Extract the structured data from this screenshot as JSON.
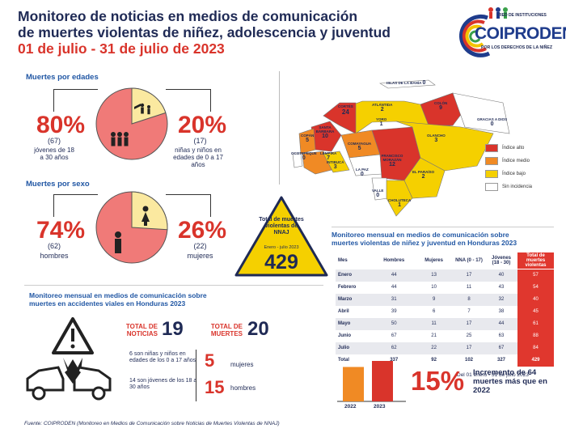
{
  "header": {
    "title_line1": "Monitoreo de noticias en medios de comunicación",
    "title_line2": "de muertes violentas de niñez, adolescencia y juventud",
    "date_range": "01 de julio - 31 de julio de 2023"
  },
  "logo": {
    "tag_top": "RED DE INSTITUCIONES",
    "brand": "COIPRODEN",
    "tag_bottom": "POR LOS DERECHOS DE LA NIÑEZ"
  },
  "edades": {
    "section_title": "Muertes por edades",
    "left_pct": "80%",
    "left_count": "(67)",
    "left_desc": "jóvenes de 18 a 30 años",
    "right_pct": "20%",
    "right_count": "(17)",
    "right_desc": "niñas y niños en edades de 0 a 17 años",
    "pie_values": [
      80,
      20
    ]
  },
  "sexo": {
    "section_title": "Muertes por sexo",
    "left_pct": "74%",
    "left_count": "(62)",
    "left_desc": "hombres",
    "right_pct": "26%",
    "right_count": "(22)",
    "right_desc": "mujeres",
    "pie_values": [
      74,
      26
    ]
  },
  "total_card": {
    "label": "Total de muertes violentas de NNAJ",
    "period": "Enero - julio 2023",
    "value": "429"
  },
  "map": {
    "regions": [
      {
        "name": "ISLAS DE LA BAHÍA",
        "value": "0"
      },
      {
        "name": "COLÓN",
        "value": "9"
      },
      {
        "name": "ATLÁNTIDA",
        "value": "2"
      },
      {
        "name": "CORTÉS",
        "value": "24"
      },
      {
        "name": "GRACIAS A DIOS",
        "value": "0"
      },
      {
        "name": "YORO",
        "value": "1"
      },
      {
        "name": "SANTA BÁRBARA",
        "value": "10"
      },
      {
        "name": "OLANCHO",
        "value": "3"
      },
      {
        "name": "COPÁN",
        "value": "5"
      },
      {
        "name": "COMAYAGUA",
        "value": "5"
      },
      {
        "name": "OCOTEPEQUE",
        "value": "0"
      },
      {
        "name": "LEMPIRA",
        "value": "7"
      },
      {
        "name": "FRANCISCO MORAZÁN",
        "value": "12"
      },
      {
        "name": "INTIBUCÁ",
        "value": "3"
      },
      {
        "name": "LA PAZ",
        "value": "0"
      },
      {
        "name": "EL PARAÍSO",
        "value": "2"
      },
      {
        "name": "VALLE",
        "value": "0"
      },
      {
        "name": "CHOLUTECA",
        "value": "1"
      }
    ],
    "legend": [
      {
        "label": "Índice alto",
        "color": "#d9342b"
      },
      {
        "label": "Índice medio",
        "color": "#f08a24"
      },
      {
        "label": "Índice bajo",
        "color": "#f5d000"
      },
      {
        "label": "Sin incidencia",
        "color": "#ffffff"
      }
    ]
  },
  "monthly": {
    "title_line1": "Monitoreo mensual en medios de comunicación sobre",
    "title_line2": "muertes violentas de niñez y juventud en Honduras 2023",
    "headers": [
      "Mes",
      "Hombres",
      "Mujeres",
      "NNA (0 - 17)",
      "Jóvenes (18 - 30)",
      "Total de muertes violentas"
    ],
    "rows": [
      [
        "Enero",
        "44",
        "13",
        "17",
        "40",
        "57"
      ],
      [
        "Febrero",
        "44",
        "10",
        "11",
        "43",
        "54"
      ],
      [
        "Marzo",
        "31",
        "9",
        "8",
        "32",
        "40"
      ],
      [
        "Abril",
        "39",
        "6",
        "7",
        "38",
        "45"
      ],
      [
        "Mayo",
        "50",
        "11",
        "17",
        "44",
        "61"
      ],
      [
        "Junio",
        "67",
        "21",
        "25",
        "63",
        "88"
      ],
      [
        "Julio",
        "62",
        "22",
        "17",
        "67",
        "84"
      ],
      [
        "Total",
        "337",
        "92",
        "102",
        "327",
        "429"
      ]
    ],
    "note": "Del 01 enero - 31 de julio 2023"
  },
  "viales": {
    "title_line1": "Monitoreo mensual en medios de comunicación sobre",
    "title_line2": "muertes en accidentes viales en Honduras 2023",
    "noticias_label": "TOTAL DE NOTICIAS",
    "noticias_value": "19",
    "muertes_label": "TOTAL DE MUERTES",
    "muertes_value": "20",
    "ninos_text": "6 son niñas y niños en edades de los 0 a 17 años",
    "jovenes_text": "14 son jóvenes de los 18 a 30 años",
    "mujeres_value": "5",
    "mujeres_label": "mujeres",
    "hombres_value": "15",
    "hombres_label": "hombres"
  },
  "increment": {
    "bars": [
      {
        "year": "2022",
        "value": 365
      },
      {
        "year": "2023",
        "value": 429
      }
    ],
    "pct": "15%",
    "text": "Incremento de 64 muertes más que en 2022"
  },
  "footer": {
    "prefix": "Fuente: COIPRODEN",
    "source": " (Monitoreo en Medios de Comunicación sobre Noticias de Muertes Violentas de NNAJ)"
  }
}
